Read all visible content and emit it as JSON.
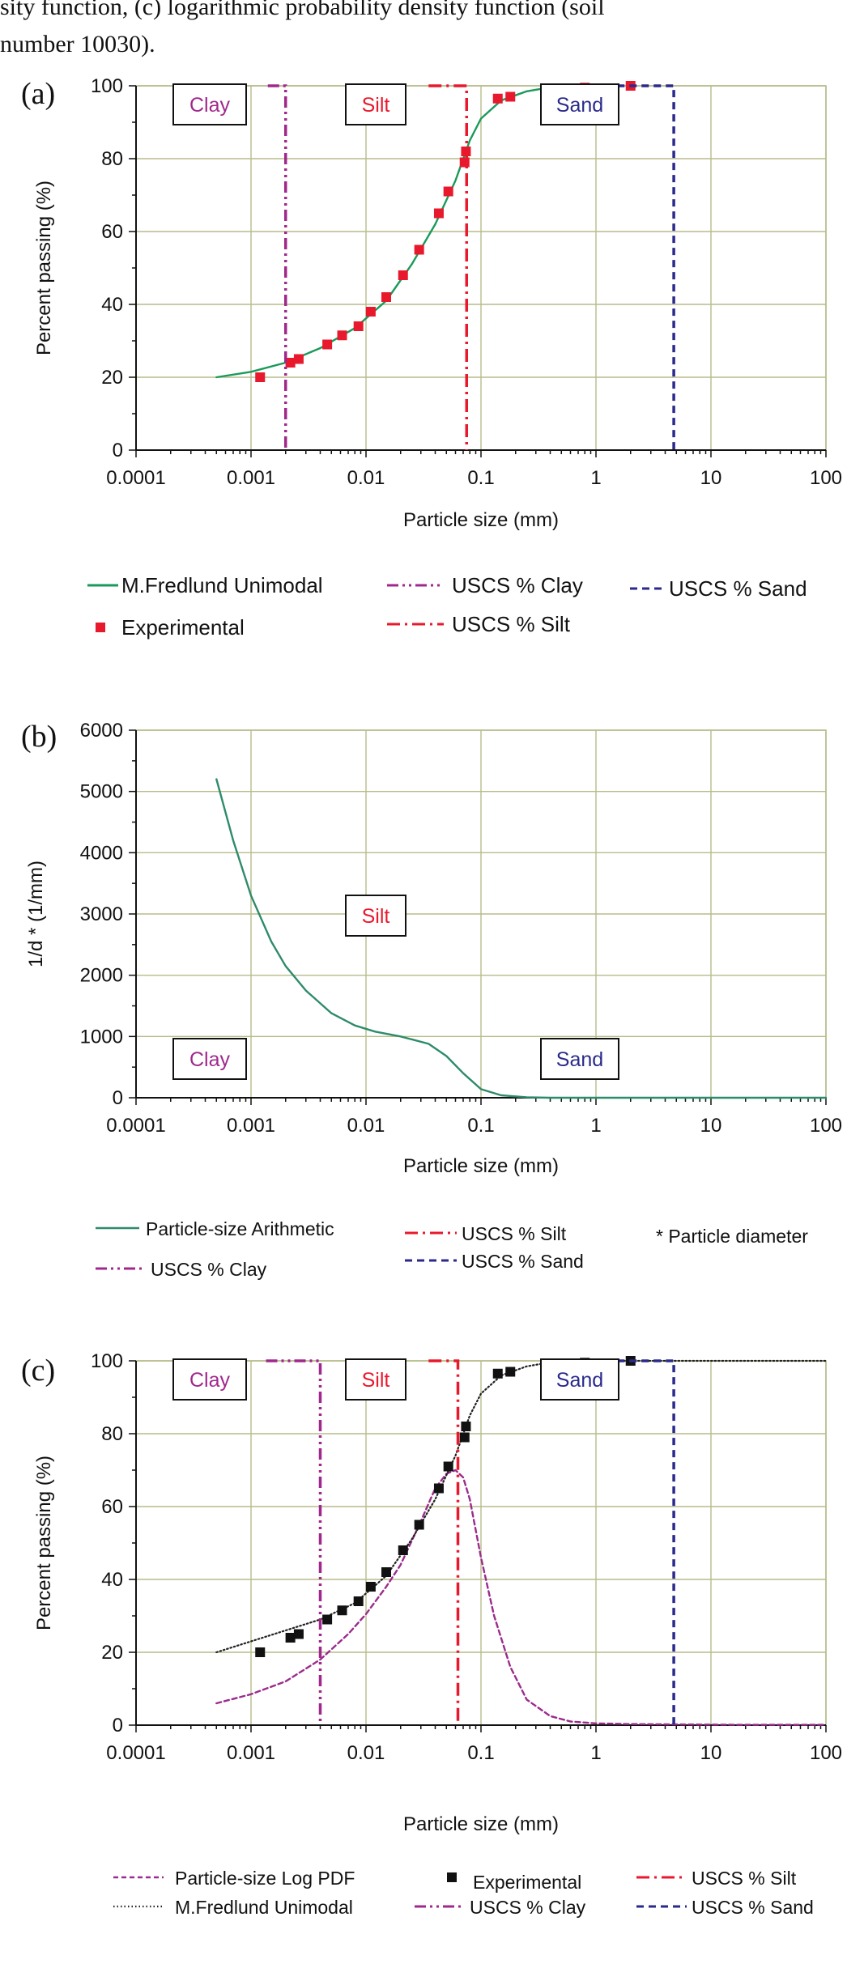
{
  "caption": {
    "line1": "sity function, (c) logarithmic probability density function (soil",
    "line2": "number 10030)."
  },
  "colors": {
    "clay": "#a0288c",
    "silt": "#e8192c",
    "sand": "#2a2a8c",
    "fredlund_a": "#1a9a5a",
    "arith": "#2e8b6a",
    "logpdf": "#9b2c8c",
    "grid": "#b8bc8a",
    "exp_a": "#e8192c",
    "exp_c": "#111111"
  },
  "chart_data": [
    {
      "panel": "(a)",
      "type": "scatter",
      "xlabel": "Particle size (mm)",
      "ylabel": "Percent passing (%)",
      "xscale": "log",
      "xlim": [
        0.0001,
        100
      ],
      "ylim": [
        0,
        100
      ],
      "xticks": [
        "0.0001",
        "0.001",
        "0.01",
        "0.1",
        "1",
        "10",
        "100"
      ],
      "yticks": [
        "0",
        "20",
        "40",
        "60",
        "80",
        "100"
      ],
      "grid": true,
      "boxes": [
        "Clay",
        "Silt",
        "Sand"
      ],
      "series": [
        {
          "name": "M.Fredlund Unimodal",
          "style": "solid",
          "color": "#1a9a5a",
          "x": [
            0.0005,
            0.001,
            0.002,
            0.004,
            0.008,
            0.015,
            0.025,
            0.04,
            0.06,
            0.08,
            0.1,
            0.15,
            0.25,
            0.4,
            0.6,
            1
          ],
          "y": [
            20,
            21.5,
            24,
            28,
            33.5,
            41,
            51,
            62,
            74,
            85,
            91,
            96,
            98.5,
            99.6,
            100,
            100
          ]
        },
        {
          "name": "Experimental",
          "style": "marker",
          "color": "#e8192c",
          "x": [
            0.0012,
            0.0022,
            0.0026,
            0.0046,
            0.0062,
            0.0086,
            0.011,
            0.015,
            0.021,
            0.029,
            0.043,
            0.052,
            0.072,
            0.074,
            0.14,
            0.18,
            0.4,
            0.8,
            2.0
          ],
          "y": [
            20,
            24,
            25,
            29,
            31.5,
            34,
            38,
            42,
            48,
            55,
            65,
            71,
            79,
            82,
            96.5,
            97,
            98.5,
            99.5,
            100
          ]
        },
        {
          "name": "USCS % Clay",
          "style": "dashdotdot",
          "color": "#a0288c",
          "x": [
            0.002,
            0.002
          ],
          "y": [
            0,
            100
          ],
          "cap_from": 0.0014
        },
        {
          "name": "USCS % Silt",
          "style": "dashdot",
          "color": "#e8192c",
          "x": [
            0.075,
            0.075
          ],
          "y": [
            0,
            100
          ],
          "cap_from": 0.035
        },
        {
          "name": "USCS % Sand",
          "style": "dash",
          "color": "#2a2a8c",
          "x": [
            4.75,
            4.75
          ],
          "y": [
            0,
            100
          ],
          "cap_from": 1.2
        }
      ]
    },
    {
      "panel": "(b)",
      "type": "line",
      "xlabel": "Particle size (mm)",
      "ylabel": "1/d * (1/mm)",
      "xscale": "log",
      "xlim": [
        0.0001,
        100
      ],
      "ylim": [
        0,
        6000
      ],
      "xticks": [
        "0.0001",
        "0.001",
        "0.01",
        "0.1",
        "1",
        "10",
        "100"
      ],
      "yticks": [
        "0",
        "1000",
        "2000",
        "3000",
        "4000",
        "5000",
        "6000"
      ],
      "grid": true,
      "boxes": [
        "Clay",
        "Silt",
        "Sand"
      ],
      "note": "* Particle diameter",
      "series": [
        {
          "name": "Particle-size Arithmetic",
          "style": "solid",
          "color": "#2e8b6a",
          "x": [
            0.0005,
            0.0007,
            0.001,
            0.0015,
            0.002,
            0.003,
            0.005,
            0.008,
            0.012,
            0.02,
            0.035,
            0.05,
            0.07,
            0.1,
            0.15,
            0.25,
            0.4,
            1,
            3,
            10,
            100
          ],
          "y": [
            5200,
            4200,
            3300,
            2550,
            2150,
            1750,
            1380,
            1180,
            1080,
            1000,
            880,
            680,
            400,
            140,
            40,
            8,
            0,
            0,
            0,
            0,
            0
          ]
        },
        {
          "name": "USCS % Clay",
          "style": "dashdotdot",
          "color": "#a0288c",
          "x": [],
          "y": []
        },
        {
          "name": "USCS % Silt",
          "style": "dashdot",
          "color": "#e8192c",
          "x": [],
          "y": []
        },
        {
          "name": "USCS % Sand",
          "style": "dash",
          "color": "#2a2a8c",
          "x": [],
          "y": []
        }
      ]
    },
    {
      "panel": "(c)",
      "type": "scatter",
      "xlabel": "Particle size (mm)",
      "ylabel": "Percent passing (%)",
      "xscale": "log",
      "xlim": [
        0.0001,
        100
      ],
      "ylim": [
        0,
        100
      ],
      "xticks": [
        "0.0001",
        "0.001",
        "0.01",
        "0.1",
        "1",
        "10",
        "100"
      ],
      "yticks": [
        "0",
        "20",
        "40",
        "60",
        "80",
        "100"
      ],
      "grid": true,
      "boxes": [
        "Clay",
        "Silt",
        "Sand"
      ],
      "series": [
        {
          "name": "Particle-size Log PDF",
          "style": "dashed",
          "color": "#9b2c8c",
          "x": [
            0.0005,
            0.001,
            0.002,
            0.004,
            0.007,
            0.01,
            0.015,
            0.02,
            0.03,
            0.04,
            0.05,
            0.06,
            0.07,
            0.08,
            0.1,
            0.13,
            0.18,
            0.25,
            0.4,
            0.6,
            1,
            2,
            5,
            20,
            100
          ],
          "y": [
            6,
            8.5,
            12,
            18,
            25,
            30.5,
            38,
            44,
            56,
            65,
            69,
            70,
            68,
            62,
            46,
            30,
            16,
            7,
            2.5,
            1,
            0.5,
            0.3,
            0.2,
            0.1,
            0.1
          ]
        },
        {
          "name": "M.Fredlund Unimodal",
          "style": "dotted",
          "color": "#222222",
          "x": [
            0.0005,
            0.001,
            0.002,
            0.004,
            0.008,
            0.015,
            0.025,
            0.04,
            0.06,
            0.08,
            0.1,
            0.15,
            0.25,
            0.4,
            0.6,
            1,
            3,
            10,
            100
          ],
          "y": [
            20,
            23,
            26,
            29,
            33.5,
            41,
            51,
            62,
            74,
            85,
            91,
            96,
            98.5,
            99.6,
            100,
            100,
            100,
            100,
            100
          ]
        },
        {
          "name": "Experimental",
          "style": "marker",
          "color": "#111111",
          "x": [
            0.0012,
            0.0022,
            0.0026,
            0.0046,
            0.0062,
            0.0086,
            0.011,
            0.015,
            0.021,
            0.029,
            0.043,
            0.052,
            0.072,
            0.074,
            0.14,
            0.18,
            0.4,
            0.8,
            2.0
          ],
          "y": [
            20,
            24,
            25,
            29,
            31.5,
            34,
            38,
            42,
            48,
            55,
            65,
            71,
            79,
            82,
            96.5,
            97,
            98.5,
            99.5,
            100
          ]
        },
        {
          "name": "USCS % Clay",
          "style": "dashdotdot",
          "color": "#a0288c",
          "x": [
            0.004,
            0.004
          ],
          "y": [
            0,
            100
          ],
          "cap_from": 0.00135
        },
        {
          "name": "USCS % Silt",
          "style": "dashdot",
          "color": "#e8192c",
          "x": [
            0.063,
            0.063
          ],
          "y": [
            0,
            100
          ],
          "cap_from": 0.035
        },
        {
          "name": "USCS % Sand",
          "style": "dash",
          "color": "#2a2a8c",
          "x": [
            4.75,
            4.75
          ],
          "y": [
            0,
            100
          ],
          "cap_from": 1.2
        }
      ]
    }
  ]
}
